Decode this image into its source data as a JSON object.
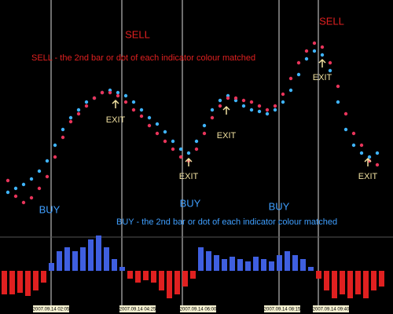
{
  "chart_data": [
    {
      "type": "dots",
      "series": [
        {
          "color": "#3fb4ff",
          "values": [
            55,
            60,
            65,
            72,
            82,
            95,
            115,
            135,
            150,
            160,
            170,
            175,
            182,
            185,
            182,
            178,
            170,
            160,
            150,
            142,
            132,
            120,
            110,
            105,
            120,
            140,
            160,
            172,
            178,
            172,
            165,
            160,
            158,
            155,
            160,
            170,
            185,
            205,
            225,
            235,
            230,
            210,
            170,
            135,
            115,
            105,
            100,
            105
          ]
        },
        {
          "color": "#e8345a",
          "values": [
            70,
            50,
            42,
            48,
            60,
            75,
            100,
            125,
            145,
            155,
            165,
            175,
            182,
            182,
            178,
            170,
            160,
            152,
            140,
            130,
            120,
            110,
            100,
            95,
            110,
            130,
            150,
            165,
            175,
            175,
            172,
            170,
            165,
            160,
            165,
            180,
            200,
            220,
            235,
            245,
            240,
            220,
            190,
            155,
            130,
            115,
            95,
            90
          ]
        }
      ]
    },
    {
      "type": "bar",
      "up_color": "#3f5fe0",
      "down_color": "#e02020",
      "values": [
        -30,
        -30,
        -28,
        -32,
        -25,
        -15,
        10,
        25,
        30,
        25,
        30,
        40,
        45,
        30,
        15,
        5,
        -10,
        -15,
        -12,
        -15,
        -25,
        -35,
        -30,
        -20,
        -10,
        30,
        25,
        20,
        15,
        18,
        15,
        12,
        18,
        15,
        12,
        20,
        25,
        20,
        15,
        5,
        -10,
        -25,
        -35,
        -30,
        -35,
        -30,
        -35,
        -25,
        -20
      ]
    }
  ],
  "annotations": {
    "sell": [
      "SELL",
      "SELL"
    ],
    "sell_note": "SELL - the 2nd bar or dot of each indicator colour matched",
    "exit": [
      "EXIT",
      "EXIT",
      "EXIT",
      "EXIT",
      "EXIT"
    ],
    "buy": [
      "BUY",
      "BUY",
      "BUY"
    ],
    "buy_note": "BUY - the 2nd bar or dot of each indicator colour matched"
  },
  "time_labels": [
    "2007.09.14 02:05",
    "2007.09.14 04:25",
    "2007.09.14 06:00",
    "2007.09.14 08:15",
    "2007.09.14 09:40"
  ]
}
